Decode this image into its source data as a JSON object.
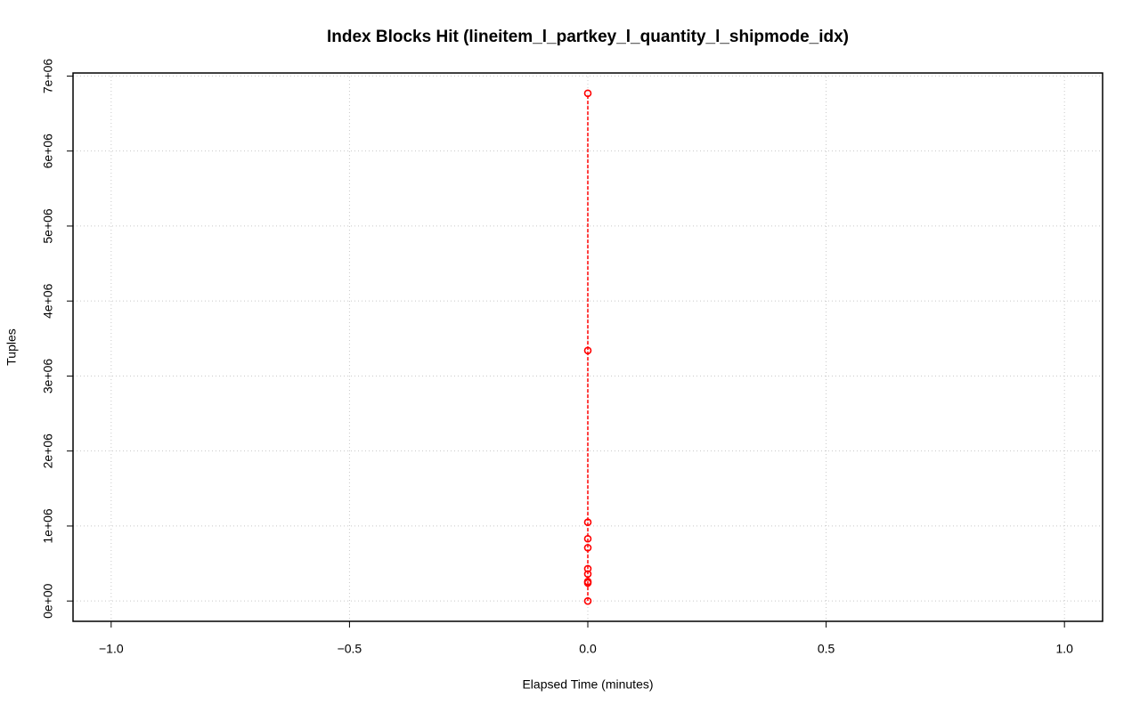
{
  "chart_data": {
    "type": "line",
    "title": "Index Blocks Hit (lineitem_l_partkey_l_quantity_l_shipmode_idx)",
    "xlabel": "Elapsed Time (minutes)",
    "ylabel": "Tuples",
    "x": [
      0,
      0,
      0,
      0,
      0,
      0,
      0,
      0,
      0,
      0
    ],
    "values": [
      0,
      240000,
      260000,
      360000,
      430000,
      710000,
      830000,
      1050000,
      3340000,
      6770000
    ],
    "color": "#ff0000",
    "line_style": "dashed",
    "marker": "circle",
    "xlim": [
      -1.08,
      1.08
    ],
    "ylim": [
      -270800,
      7040800
    ],
    "xticks": [
      {
        "value": -1,
        "label": "−1.0"
      },
      {
        "value": -0.5,
        "label": "−0.5"
      },
      {
        "value": 0,
        "label": "0.0"
      },
      {
        "value": 0.5,
        "label": "0.5"
      },
      {
        "value": 1,
        "label": "1.0"
      }
    ],
    "yticks": [
      {
        "value": 0,
        "label": "0e+00"
      },
      {
        "value": 1000000,
        "label": "1e+06"
      },
      {
        "value": 2000000,
        "label": "2e+06"
      },
      {
        "value": 3000000,
        "label": "3e+06"
      },
      {
        "value": 4000000,
        "label": "4e+06"
      },
      {
        "value": 5000000,
        "label": "5e+06"
      },
      {
        "value": 6000000,
        "label": "6e+06"
      },
      {
        "value": 7000000,
        "label": "7e+06"
      }
    ],
    "grid": true
  }
}
